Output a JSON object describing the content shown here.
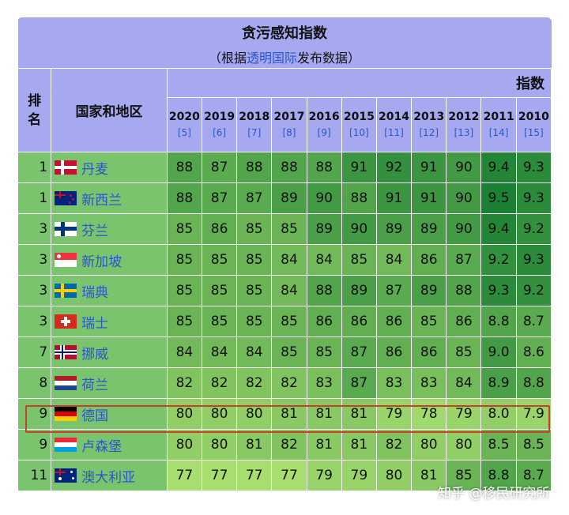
{
  "header": {
    "title": "贪污感知指数",
    "subtitle_pre": "（根据",
    "subtitle_link": "透明国际",
    "subtitle_post": "发布数据）",
    "rank_label_1": "排",
    "rank_label_2": "名",
    "country_label": "国家和地区",
    "index_label": "指数"
  },
  "years": [
    "2020",
    "2019",
    "2018",
    "2017",
    "2016",
    "2015",
    "2014",
    "2013",
    "2012",
    "2011",
    "2010"
  ],
  "refs": [
    "[5]",
    "[6]",
    "[7]",
    "[8]",
    "[9]",
    "[10]",
    "[11]",
    "[12]",
    "[13]",
    "[14]",
    "[15]"
  ],
  "rows": [
    {
      "rank": "1",
      "country": "丹麦",
      "flag": "denmark",
      "values": [
        "88",
        "87",
        "88",
        "88",
        "88",
        "91",
        "92",
        "91",
        "90",
        "9.4",
        "9.3"
      ]
    },
    {
      "rank": "1",
      "country": "新西兰",
      "flag": "new-zealand",
      "values": [
        "88",
        "87",
        "87",
        "89",
        "90",
        "88",
        "91",
        "91",
        "90",
        "9.5",
        "9.3"
      ]
    },
    {
      "rank": "3",
      "country": "芬兰",
      "flag": "finland",
      "values": [
        "85",
        "86",
        "85",
        "85",
        "89",
        "90",
        "89",
        "89",
        "90",
        "9.4",
        "9.2"
      ]
    },
    {
      "rank": "3",
      "country": "新加坡",
      "flag": "singapore",
      "values": [
        "85",
        "85",
        "85",
        "84",
        "84",
        "85",
        "84",
        "86",
        "87",
        "9.2",
        "9.3"
      ]
    },
    {
      "rank": "3",
      "country": "瑞典",
      "flag": "sweden",
      "values": [
        "85",
        "85",
        "85",
        "84",
        "88",
        "89",
        "87",
        "89",
        "88",
        "9.3",
        "9.2"
      ]
    },
    {
      "rank": "3",
      "country": "瑞士",
      "flag": "switzerland",
      "values": [
        "85",
        "85",
        "85",
        "85",
        "86",
        "86",
        "86",
        "85",
        "86",
        "8.8",
        "8.7"
      ]
    },
    {
      "rank": "7",
      "country": "挪威",
      "flag": "norway",
      "values": [
        "84",
        "84",
        "84",
        "85",
        "85",
        "87",
        "86",
        "86",
        "85",
        "9.0",
        "8.6"
      ]
    },
    {
      "rank": "8",
      "country": "荷兰",
      "flag": "netherlands",
      "values": [
        "82",
        "82",
        "82",
        "82",
        "83",
        "87",
        "83",
        "83",
        "84",
        "8.9",
        "8.8"
      ]
    },
    {
      "rank": "9",
      "country": "德国",
      "flag": "germany",
      "values": [
        "80",
        "80",
        "80",
        "81",
        "81",
        "81",
        "79",
        "78",
        "79",
        "8.0",
        "7.9"
      ]
    },
    {
      "rank": "9",
      "country": "卢森堡",
      "flag": "luxembourg",
      "values": [
        "80",
        "80",
        "81",
        "82",
        "81",
        "81",
        "82",
        "80",
        "80",
        "8.5",
        "8.5"
      ]
    },
    {
      "rank": "11",
      "country": "澳大利亚",
      "flag": "australia",
      "values": [
        "77",
        "77",
        "77",
        "77",
        "79",
        "79",
        "80",
        "81",
        "85",
        "8.8",
        "8.7"
      ]
    }
  ],
  "colors": {
    "header_bg": "#a6a8f0",
    "link": "#2a56c8",
    "highlight_border": "#c8402b"
  },
  "watermark": "知乎 @移民研究所"
}
